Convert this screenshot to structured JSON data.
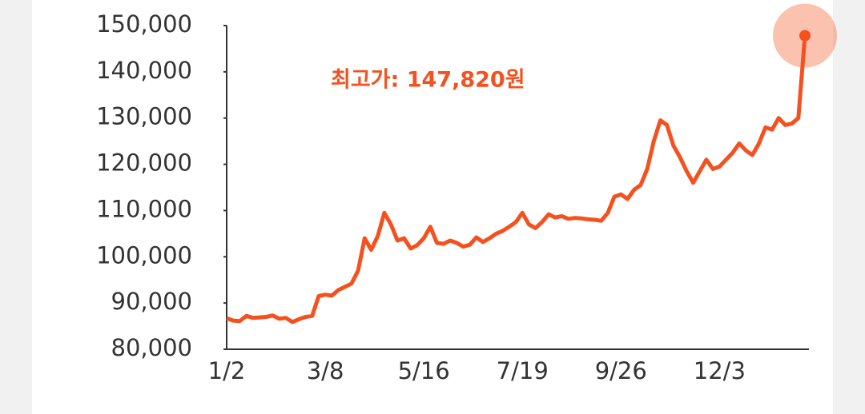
{
  "chart_data": {
    "type": "line",
    "annotation": "최고가: 147,820원",
    "color": "#f4511e",
    "categories": [
      "1/2",
      null,
      null,
      null,
      null,
      null,
      null,
      null,
      null,
      null,
      null,
      null,
      null,
      null,
      null,
      "3/8",
      null,
      null,
      null,
      null,
      null,
      null,
      null,
      null,
      null,
      null,
      null,
      null,
      null,
      null,
      "5/16",
      null,
      null,
      null,
      null,
      null,
      null,
      null,
      null,
      null,
      null,
      null,
      null,
      null,
      null,
      "7/19",
      null,
      null,
      null,
      null,
      null,
      null,
      null,
      null,
      null,
      null,
      null,
      null,
      null,
      null,
      "9/26",
      null,
      null,
      null,
      null,
      null,
      null,
      null,
      null,
      null,
      null,
      null,
      null,
      null,
      null,
      "12/3",
      null,
      null,
      null,
      null,
      null,
      null,
      null,
      null,
      null,
      null,
      null,
      null,
      null
    ],
    "values": [
      86700,
      86200,
      86100,
      87200,
      86800,
      86900,
      87000,
      87300,
      86600,
      86800,
      85900,
      86500,
      87000,
      87200,
      91500,
      91800,
      91600,
      92800,
      93500,
      94200,
      97000,
      104000,
      101500,
      104500,
      109500,
      107000,
      103500,
      104000,
      101800,
      102500,
      104000,
      106500,
      103000,
      102800,
      103500,
      103000,
      102200,
      102600,
      104200,
      103200,
      104000,
      105000,
      105600,
      106500,
      107500,
      109500,
      107000,
      106200,
      107500,
      109200,
      108500,
      108800,
      108200,
      108400,
      108300,
      108100,
      108000,
      107800,
      109500,
      113000,
      113500,
      112500,
      114500,
      115500,
      119000,
      125000,
      129500,
      128500,
      124000,
      121500,
      118500,
      116000,
      118500,
      121000,
      119000,
      119500,
      121000,
      122500,
      124500,
      123000,
      122000,
      124500,
      128000,
      127500,
      130000,
      128500,
      128800,
      130000,
      147820
    ],
    "ylim": [
      80000,
      150000
    ],
    "yticks": [
      {
        "value": 80000,
        "label": "80,000"
      },
      {
        "value": 90000,
        "label": "90,000"
      },
      {
        "value": 100000,
        "label": "100,000"
      },
      {
        "value": 110000,
        "label": "110,000"
      },
      {
        "value": 120000,
        "label": "120,000"
      },
      {
        "value": 130000,
        "label": "130,000"
      },
      {
        "value": 140000,
        "label": "140,000"
      },
      {
        "value": 150000,
        "label": "150,000"
      }
    ]
  }
}
